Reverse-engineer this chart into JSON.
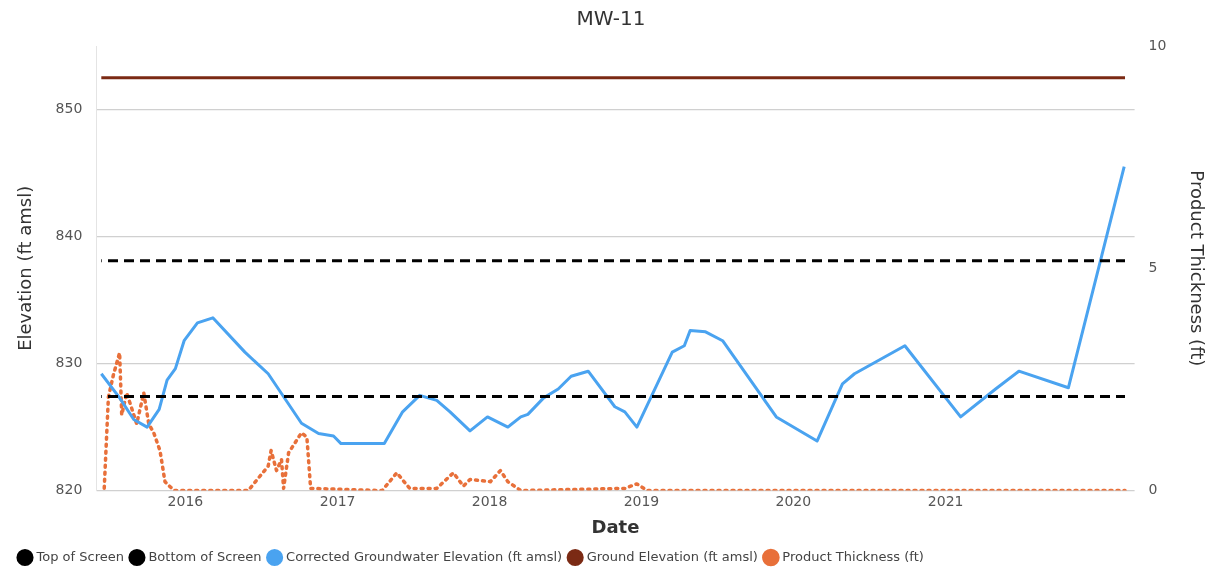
{
  "chart_data": {
    "type": "line",
    "title": "MW-11",
    "xlabel": "Date",
    "ylabel": "Elevation (ft amsl)",
    "y2label": "Product Thickness (ft)",
    "xlim": [
      "2015-06-01",
      "2022-03-31"
    ],
    "xticks": [
      {
        "value": "2016-01-01",
        "label": "2016"
      },
      {
        "value": "2017-01-01",
        "label": "2017"
      },
      {
        "value": "2018-01-01",
        "label": "2018"
      },
      {
        "value": "2019-01-01",
        "label": "2019"
      },
      {
        "value": "2020-01-01",
        "label": "2020"
      },
      {
        "value": "2021-01-01",
        "label": "2021"
      }
    ],
    "ylim": [
      820,
      855
    ],
    "yticks": [
      820,
      830,
      840,
      850
    ],
    "y2lim": [
      0,
      10
    ],
    "y2ticks": [
      0,
      5,
      10
    ],
    "grid": "y",
    "legend": "bottom left",
    "marker": "none",
    "series": [
      {
        "name": "Top of Screen",
        "color": "#000000",
        "line_style": "dashed",
        "x": [
          "2015-06-13",
          "2022-03-08"
        ],
        "values": [
          838.1,
          838.1
        ]
      },
      {
        "name": "Bottom of Screen",
        "color": "#000000",
        "line_style": "dashed",
        "x": [
          "2015-06-13",
          "2022-03-08"
        ],
        "values": [
          827.4,
          827.4
        ]
      },
      {
        "name": "Corrected Groundwater Elevation (ft amsl)",
        "color": "#4aa3f0",
        "line_style": "solid",
        "x": [
          "2015-06-13",
          "2015-07-27",
          "2015-08-30",
          "2015-10-01",
          "2015-10-30",
          "2015-11-18",
          "2015-12-08",
          "2015-12-29",
          "2016-01-30",
          "2016-03-07",
          "2016-05-23",
          "2016-07-18",
          "2016-10-06",
          "2016-11-16",
          "2016-12-22",
          "2017-01-09",
          "2017-04-23",
          "2017-06-06",
          "2017-07-17",
          "2017-08-27",
          "2017-09-28",
          "2017-11-15",
          "2017-12-27",
          "2018-02-14",
          "2018-03-17",
          "2018-04-03",
          "2018-05-11",
          "2018-06-15",
          "2018-07-16",
          "2018-08-26",
          "2018-10-29",
          "2018-11-22",
          "2018-12-21",
          "2019-03-16",
          "2019-04-14",
          "2019-04-28",
          "2019-06-04",
          "2019-07-15",
          "2019-11-21",
          "2020-02-27",
          "2020-04-28",
          "2020-05-27",
          "2020-09-25",
          "2021-02-06",
          "2021-05-01",
          "2021-06-26",
          "2021-10-23",
          "2022-03-06"
        ],
        "values": [
          829.2,
          827.3,
          825.6,
          825.0,
          826.4,
          828.7,
          829.6,
          831.8,
          833.2,
          833.6,
          830.9,
          829.2,
          825.3,
          824.5,
          824.3,
          823.7,
          823.7,
          826.2,
          827.5,
          827.1,
          826.2,
          824.7,
          825.8,
          825.0,
          825.8,
          826.0,
          827.3,
          828.0,
          829.0,
          829.4,
          826.6,
          826.2,
          825.0,
          830.9,
          831.4,
          832.6,
          832.5,
          831.8,
          825.8,
          823.9,
          828.4,
          829.2,
          831.4,
          825.8,
          828.0,
          829.4,
          828.1,
          845.5
        ]
      },
      {
        "name": "Ground Elevation (ft amsl)",
        "color": "#7b2a14",
        "line_style": "solid",
        "x": [
          "2015-06-13",
          "2022-03-08"
        ],
        "values": [
          852.5,
          852.5
        ]
      },
      {
        "name": "Product Thickness (ft)",
        "color": "#e8703a",
        "line_style": "dotted",
        "axis": "y2",
        "x": [
          "2015-06-20",
          "2015-06-30",
          "2015-07-12",
          "2015-07-27",
          "2015-08-01",
          "2015-08-13",
          "2015-09-06",
          "2015-09-23",
          "2015-10-05",
          "2015-10-17",
          "2015-11-01",
          "2015-11-13",
          "2015-12-05",
          "2016-05-31",
          "2016-07-18",
          "2016-07-25",
          "2016-08-07",
          "2016-08-19",
          "2016-08-24",
          "2016-09-05",
          "2016-10-06",
          "2016-10-19",
          "2016-10-28",
          "2017-04-18",
          "2017-05-23",
          "2017-06-23",
          "2017-08-27",
          "2017-10-06",
          "2017-10-30",
          "2017-11-15",
          "2018-01-03",
          "2018-01-27",
          "2018-02-14",
          "2018-03-17",
          "2018-11-22",
          "2018-12-21",
          "2019-01-15",
          "2022-03-08"
        ],
        "values": [
          0.05,
          2.1,
          2.6,
          3.1,
          1.7,
          2.2,
          1.5,
          2.2,
          1.5,
          1.3,
          0.9,
          0.2,
          0,
          0,
          0.55,
          0.9,
          0.45,
          0.7,
          0.05,
          0.85,
          1.3,
          1.2,
          0.05,
          0,
          0.4,
          0.05,
          0.05,
          0.4,
          0.1,
          0.25,
          0.2,
          0.45,
          0.2,
          0,
          0.05,
          0.15,
          0,
          0
        ]
      }
    ]
  }
}
